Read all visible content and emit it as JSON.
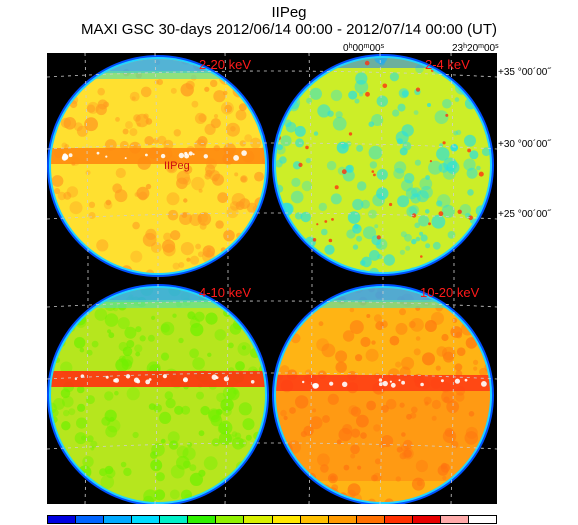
{
  "header": {
    "title": "IIPeg",
    "subtitle": "MAXI GSC 30-days 2012/06/14 00:00 - 2012/07/14 00:00 (UT)"
  },
  "ra_labels": [
    {
      "h": "0",
      "m": "00",
      "s": "00"
    },
    {
      "h": "23",
      "m": "20",
      "s": "00"
    }
  ],
  "dec_labels": [
    "+35 °00´00˝",
    "+30 °00´00˝",
    "+25 °00´00˝"
  ],
  "panels": [
    {
      "band": "2-20 keV",
      "base": "#ffe030",
      "hot": "#ff8a10",
      "edge": "#22d4ff",
      "tint": "#ff9a20"
    },
    {
      "band": "2-4 keV",
      "base": "#ccee28",
      "hot": "#ff5010",
      "edge": "#22d4ff",
      "tint": "#28e0e0"
    },
    {
      "band": "4-10 keV",
      "base": "#b6e61e",
      "hot": "#ff3010",
      "edge": "#22d4ff",
      "tint": "#70f000"
    },
    {
      "band": "10-20 keV",
      "base": "#ffb414",
      "hot": "#ff3c14",
      "edge": "#22d4ff",
      "tint": "#ff7a10"
    }
  ],
  "source_label": "IIPeg",
  "colorbar": [
    "#0000e0",
    "#0064ff",
    "#00aaff",
    "#00dcff",
    "#00f0c8",
    "#30f000",
    "#90f000",
    "#d8f000",
    "#ffe800",
    "#ffc000",
    "#ff9a00",
    "#ff7000",
    "#ff3000",
    "#e80000",
    "#ffaaaa",
    "#ffffff"
  ]
}
